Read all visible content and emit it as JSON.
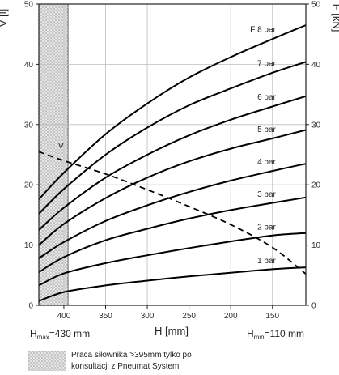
{
  "chart_data": {
    "type": "line",
    "y_left": {
      "label": "V [l]",
      "ticks": [
        0,
        10,
        20,
        30,
        40,
        50
      ],
      "range": [
        0,
        50
      ]
    },
    "y_right": {
      "label": "F [kN]",
      "ticks": [
        0,
        10,
        20,
        30,
        40,
        50
      ],
      "range": [
        0,
        50
      ]
    },
    "x": {
      "label": "H [mm]",
      "ticks": [
        400,
        350,
        300,
        250,
        200,
        150
      ],
      "range": [
        430,
        110
      ],
      "reversed": true
    },
    "h_max_label": {
      "base": "H",
      "sub": "max",
      "rest": "=430 mm"
    },
    "h_min_label": {
      "base": "H",
      "sub": "min",
      "rest": "=110 mm"
    },
    "hatched_region": {
      "x_from": 430,
      "x_to": 395
    },
    "series": [
      {
        "name": "1 bar",
        "x": [
          430,
          400,
          350,
          300,
          250,
          200,
          150,
          110
        ],
        "y": [
          0.7,
          2.2,
          3.3,
          4.1,
          4.8,
          5.4,
          6.0,
          6.3
        ]
      },
      {
        "name": "2 bar",
        "x": [
          430,
          400,
          350,
          300,
          250,
          200,
          150,
          110
        ],
        "y": [
          3.3,
          5.3,
          7.0,
          8.3,
          9.5,
          10.6,
          11.6,
          12.0
        ]
      },
      {
        "name": "3 bar",
        "x": [
          430,
          400,
          350,
          300,
          250,
          200,
          150,
          110
        ],
        "y": [
          5.5,
          8.0,
          10.8,
          12.7,
          14.4,
          15.8,
          17.0,
          17.9
        ]
      },
      {
        "name": "4 bar",
        "x": [
          430,
          400,
          350,
          300,
          250,
          200,
          150,
          110
        ],
        "y": [
          7.8,
          10.5,
          14.0,
          16.6,
          18.8,
          20.7,
          22.3,
          23.5
        ]
      },
      {
        "name": "5 bar",
        "x": [
          430,
          400,
          350,
          300,
          250,
          200,
          150,
          110
        ],
        "y": [
          10.0,
          13.5,
          17.8,
          21.2,
          23.9,
          26.0,
          27.7,
          29.1
        ]
      },
      {
        "name": "6 bar",
        "x": [
          430,
          400,
          350,
          300,
          250,
          200,
          150,
          110
        ],
        "y": [
          12.5,
          16.2,
          21.2,
          25.0,
          28.2,
          30.8,
          33.0,
          34.7
        ]
      },
      {
        "name": "7 bar",
        "x": [
          430,
          400,
          350,
          300,
          250,
          200,
          150,
          110
        ],
        "y": [
          15.2,
          19.3,
          25.0,
          29.5,
          33.2,
          36.0,
          38.6,
          40.4
        ]
      },
      {
        "name": "F 8 bar",
        "x": [
          430,
          400,
          350,
          300,
          250,
          200,
          150,
          110
        ],
        "y": [
          17.6,
          22.0,
          28.4,
          33.5,
          37.8,
          41.2,
          44.2,
          46.5
        ]
      },
      {
        "name": "V",
        "style": "dashed",
        "x": [
          430,
          400,
          350,
          300,
          250,
          200,
          150,
          110
        ],
        "y": [
          25.5,
          24.0,
          21.8,
          19.2,
          16.4,
          13.4,
          9.6,
          5.2
        ]
      }
    ]
  },
  "legend_note": {
    "line1": "Praca siłownika >395mm tylko po",
    "line2": "konsultacji z Pneumat System"
  }
}
